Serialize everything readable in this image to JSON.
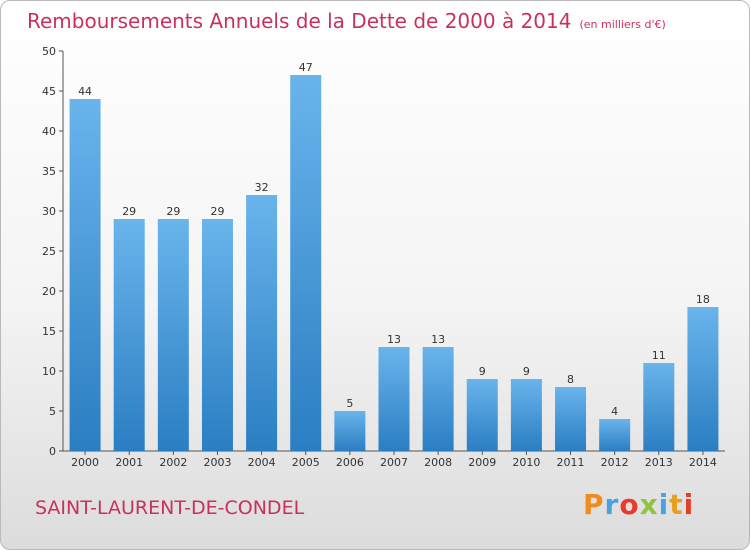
{
  "header": {
    "title": "Remboursements Annuels de la Dette de 2000 à 2014",
    "unit": "(en milliers d'€)"
  },
  "footer": {
    "commune": "SAINT-LAURENT-DE-CONDEL",
    "brand": "Proxiti",
    "brand_colors": [
      "#f08c1e",
      "#4aa3df",
      "#e63c2a",
      "#8cc63f",
      "#4aa3df",
      "#e6a01e",
      "#e63c2a"
    ]
  },
  "colors": {
    "bar_light": "#6ab4ec",
    "bar_dark": "#2a7ec2",
    "title": "#c8325a"
  },
  "chart_data": {
    "type": "bar",
    "categories": [
      "2000",
      "2001",
      "2002",
      "2003",
      "2004",
      "2005",
      "2006",
      "2007",
      "2008",
      "2009",
      "2010",
      "2011",
      "2012",
      "2013",
      "2014"
    ],
    "values": [
      44,
      29,
      29,
      29,
      32,
      47,
      5,
      13,
      13,
      9,
      9,
      8,
      4,
      11,
      18
    ],
    "ylim": [
      0,
      50
    ],
    "yticks": [
      0,
      5,
      10,
      15,
      20,
      25,
      30,
      35,
      40,
      45,
      50
    ],
    "grid": false,
    "data_labels": true
  }
}
